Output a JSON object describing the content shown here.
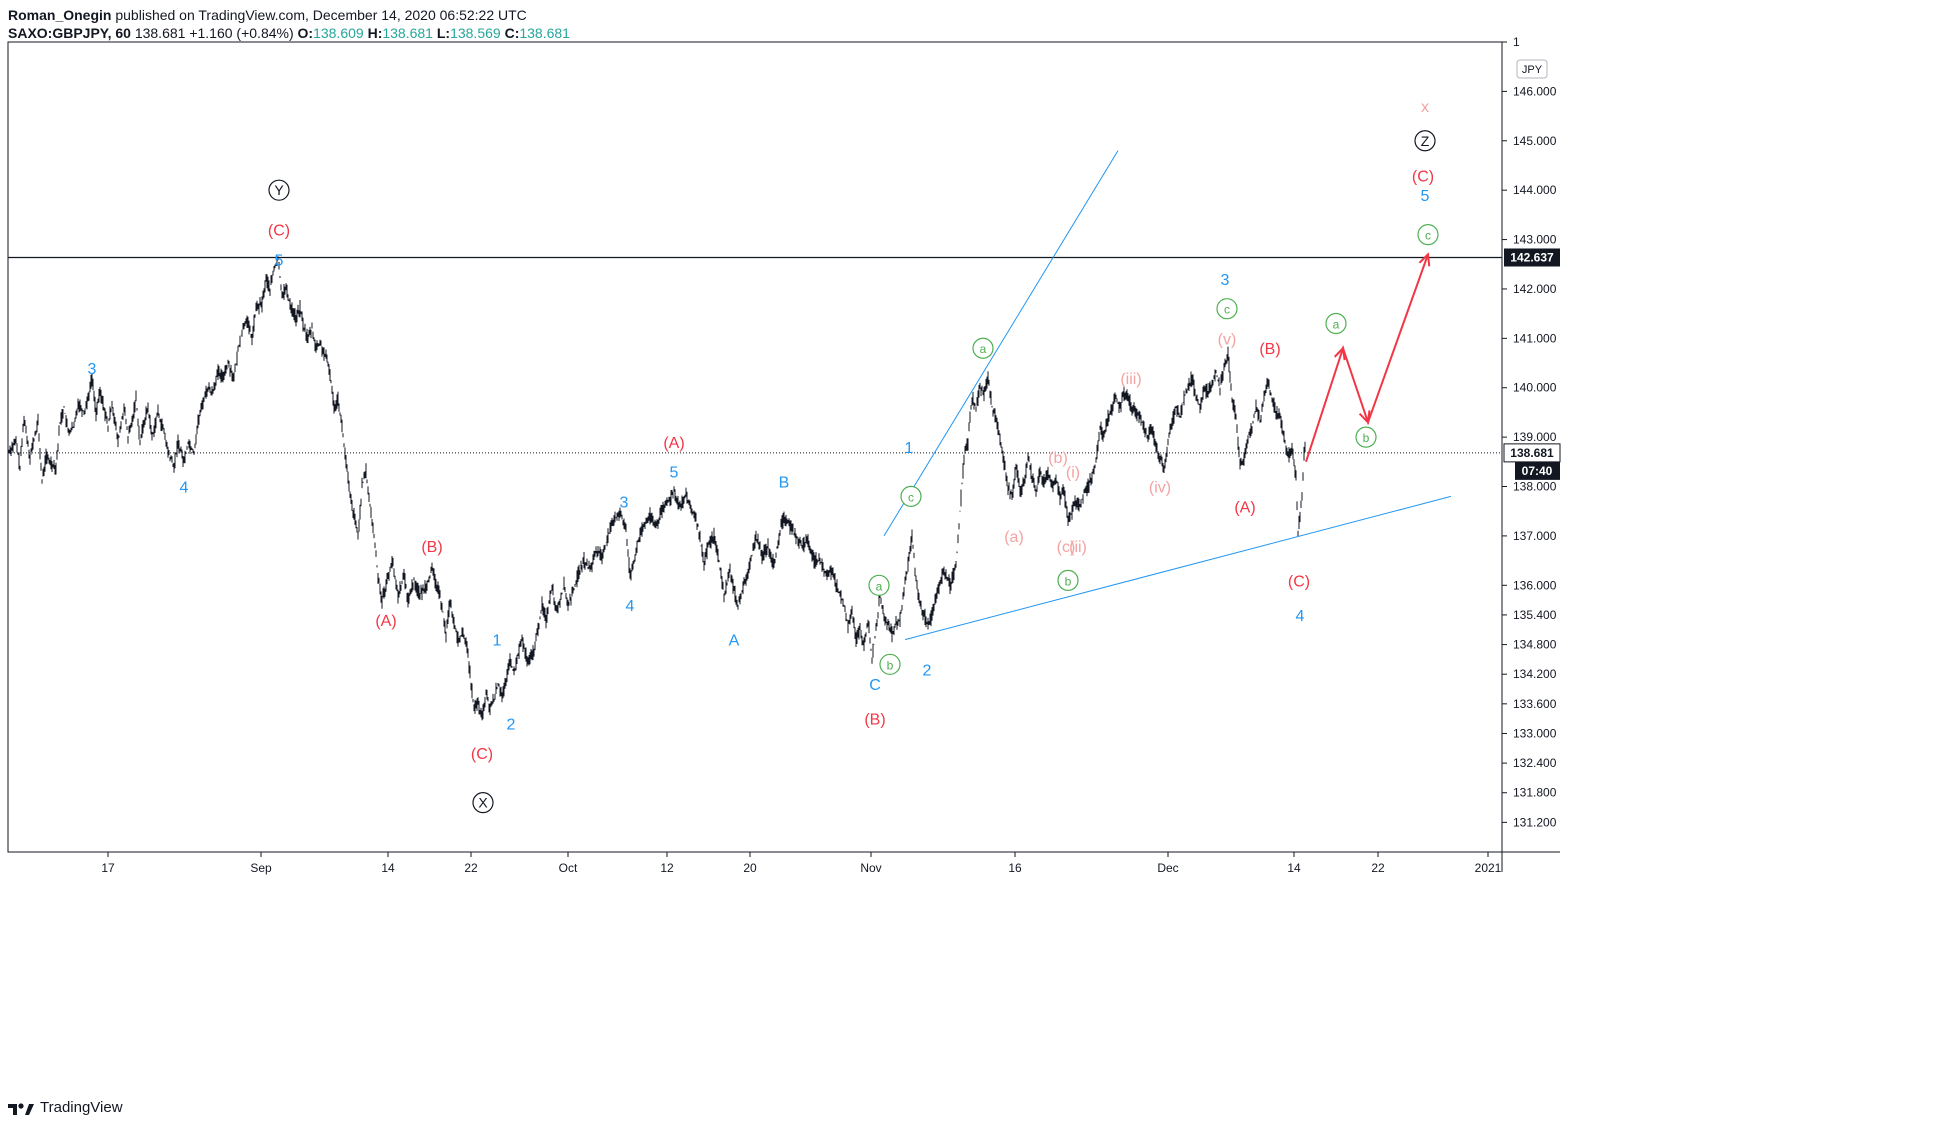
{
  "header": {
    "author": "Roman_Onegin",
    "published_text": "published on TradingView.com, December 14, 2020 06:52:22 UTC",
    "symbol": "SAXO:GBPJPY, 60",
    "last": "138.681",
    "change": "+1.160 (+0.84%)",
    "o_label": "O:",
    "o_value": "138.609",
    "h_label": "H:",
    "h_value": "138.681",
    "l_label": "L:",
    "l_value": "138.569",
    "c_label": "C:",
    "c_value": "138.681"
  },
  "footer": {
    "brand": "TradingView"
  },
  "colors": {
    "red": "#f23645",
    "blue": "#2196f3",
    "green": "#4caf50",
    "pink": "#f4a3a3",
    "black": "#131722"
  },
  "chart_data": {
    "type": "line",
    "currency_badge": "JPY",
    "ylim": [
      130.6,
      147.0
    ],
    "y_ticks": [
      "131.200",
      "131.800",
      "132.400",
      "133.000",
      "133.600",
      "134.200",
      "134.800",
      "135.400",
      "136.000",
      "137.000",
      "138.000",
      "139.000",
      "140.000",
      "141.000",
      "142.000",
      "143.000",
      "144.000",
      "145.000",
      "146.000",
      "1"
    ],
    "x_ticks": [
      "17",
      "Sep",
      "14",
      "22",
      "Oct",
      "12",
      "20",
      "Nov",
      "16",
      "Dec",
      "14",
      "22",
      "2021"
    ],
    "price_labels": {
      "last": "138.681",
      "countdown": "07:40",
      "hline": "142.637"
    },
    "hline_value": 142.637,
    "price_path": [
      [
        0,
        138.7
      ],
      [
        8,
        138.9
      ],
      [
        12,
        138.4
      ],
      [
        16,
        139.4
      ],
      [
        22,
        138.6
      ],
      [
        30,
        139.3
      ],
      [
        34,
        138.1
      ],
      [
        38,
        138.6
      ],
      [
        42,
        138.5
      ],
      [
        48,
        138.4
      ],
      [
        52,
        139.3
      ],
      [
        56,
        139.6
      ],
      [
        60,
        139.1
      ],
      [
        66,
        139.2
      ],
      [
        70,
        139.7
      ],
      [
        76,
        139.5
      ],
      [
        80,
        139.8
      ],
      [
        84,
        140.2
      ],
      [
        88,
        139.5
      ],
      [
        92,
        139.9
      ],
      [
        96,
        139.6
      ],
      [
        100,
        139.2
      ],
      [
        104,
        139.7
      ],
      [
        110,
        138.9
      ],
      [
        116,
        139.6
      ],
      [
        120,
        139.0
      ],
      [
        124,
        139.3
      ],
      [
        128,
        139.8
      ],
      [
        132,
        138.9
      ],
      [
        136,
        139.3
      ],
      [
        140,
        139.6
      ],
      [
        144,
        139.0
      ],
      [
        150,
        139.5
      ],
      [
        156,
        139.1
      ],
      [
        160,
        138.7
      ],
      [
        166,
        138.4
      ],
      [
        170,
        138.9
      ],
      [
        176,
        138.5
      ],
      [
        180,
        138.9
      ],
      [
        186,
        138.7
      ],
      [
        190,
        139.3
      ],
      [
        196,
        139.8
      ],
      [
        200,
        140.0
      ],
      [
        204,
        139.9
      ],
      [
        210,
        140.3
      ],
      [
        214,
        140.2
      ],
      [
        220,
        140.5
      ],
      [
        226,
        140.2
      ],
      [
        232,
        141.0
      ],
      [
        238,
        141.4
      ],
      [
        244,
        141.0
      ],
      [
        248,
        141.6
      ],
      [
        254,
        141.7
      ],
      [
        258,
        142.2
      ],
      [
        262,
        142.0
      ],
      [
        266,
        142.4
      ],
      [
        270,
        142.6
      ],
      [
        274,
        141.9
      ],
      [
        278,
        142.0
      ],
      [
        282,
        141.7
      ],
      [
        288,
        141.4
      ],
      [
        292,
        141.6
      ],
      [
        296,
        141.2
      ],
      [
        300,
        141.0
      ],
      [
        304,
        141.2
      ],
      [
        308,
        140.8
      ],
      [
        312,
        140.9
      ],
      [
        318,
        140.6
      ],
      [
        322,
        140.3
      ],
      [
        326,
        139.6
      ],
      [
        330,
        139.8
      ],
      [
        334,
        139.2
      ],
      [
        338,
        138.5
      ],
      [
        342,
        137.8
      ],
      [
        346,
        137.4
      ],
      [
        350,
        137.0
      ],
      [
        354,
        138.0
      ],
      [
        358,
        138.3
      ],
      [
        362,
        137.6
      ],
      [
        366,
        137.0
      ],
      [
        370,
        136.2
      ],
      [
        374,
        135.7
      ],
      [
        378,
        136.0
      ],
      [
        384,
        136.5
      ],
      [
        390,
        135.8
      ],
      [
        396,
        136.2
      ],
      [
        400,
        135.7
      ],
      [
        406,
        136.1
      ],
      [
        412,
        135.8
      ],
      [
        418,
        136.0
      ],
      [
        424,
        136.3
      ],
      [
        430,
        135.9
      ],
      [
        434,
        135.6
      ],
      [
        438,
        135.0
      ],
      [
        442,
        135.7
      ],
      [
        446,
        135.2
      ],
      [
        450,
        134.9
      ],
      [
        454,
        135.0
      ],
      [
        458,
        134.9
      ],
      [
        462,
        134.2
      ],
      [
        466,
        133.5
      ],
      [
        470,
        133.6
      ],
      [
        474,
        133.3
      ],
      [
        478,
        133.8
      ],
      [
        482,
        133.5
      ],
      [
        486,
        133.7
      ],
      [
        490,
        134.0
      ],
      [
        494,
        133.8
      ],
      [
        498,
        134.0
      ],
      [
        502,
        134.5
      ],
      [
        506,
        134.2
      ],
      [
        510,
        134.6
      ],
      [
        514,
        134.9
      ],
      [
        520,
        134.4
      ],
      [
        526,
        134.7
      ],
      [
        530,
        135.1
      ],
      [
        534,
        135.6
      ],
      [
        538,
        135.3
      ],
      [
        544,
        136.0
      ],
      [
        548,
        135.5
      ],
      [
        552,
        135.7
      ],
      [
        556,
        136.0
      ],
      [
        560,
        135.6
      ],
      [
        564,
        135.8
      ],
      [
        570,
        136.2
      ],
      [
        576,
        136.5
      ],
      [
        582,
        136.3
      ],
      [
        588,
        136.7
      ],
      [
        594,
        136.6
      ],
      [
        600,
        137.0
      ],
      [
        606,
        137.3
      ],
      [
        612,
        137.5
      ],
      [
        618,
        137.1
      ],
      [
        622,
        136.2
      ],
      [
        626,
        136.5
      ],
      [
        630,
        136.9
      ],
      [
        636,
        137.2
      ],
      [
        642,
        137.4
      ],
      [
        648,
        137.2
      ],
      [
        654,
        137.5
      ],
      [
        660,
        137.7
      ],
      [
        666,
        137.9
      ],
      [
        672,
        137.6
      ],
      [
        678,
        137.8
      ],
      [
        684,
        137.5
      ],
      [
        690,
        137.2
      ],
      [
        696,
        136.4
      ],
      [
        700,
        136.8
      ],
      [
        706,
        137.0
      ],
      [
        710,
        136.6
      ],
      [
        716,
        135.8
      ],
      [
        722,
        136.3
      ],
      [
        726,
        135.9
      ],
      [
        730,
        135.6
      ],
      [
        736,
        136.0
      ],
      [
        742,
        136.4
      ],
      [
        748,
        137.0
      ],
      [
        754,
        136.6
      ],
      [
        760,
        136.8
      ],
      [
        766,
        136.4
      ],
      [
        772,
        137.1
      ],
      [
        776,
        137.4
      ],
      [
        782,
        137.2
      ],
      [
        788,
        137.0
      ],
      [
        794,
        136.8
      ],
      [
        800,
        136.9
      ],
      [
        806,
        136.5
      ],
      [
        812,
        136.5
      ],
      [
        818,
        136.2
      ],
      [
        824,
        136.3
      ],
      [
        830,
        135.9
      ],
      [
        836,
        135.6
      ],
      [
        840,
        135.2
      ],
      [
        844,
        135.5
      ],
      [
        848,
        134.9
      ],
      [
        852,
        135.1
      ],
      [
        856,
        134.8
      ],
      [
        860,
        135.3
      ],
      [
        864,
        134.5
      ],
      [
        868,
        135.1
      ],
      [
        872,
        135.8
      ],
      [
        876,
        135.4
      ],
      [
        880,
        135.2
      ],
      [
        884,
        135.0
      ],
      [
        888,
        135.2
      ],
      [
        892,
        135.3
      ],
      [
        896,
        135.9
      ],
      [
        900,
        136.4
      ],
      [
        904,
        137.0
      ],
      [
        908,
        136.1
      ],
      [
        912,
        135.6
      ],
      [
        916,
        135.4
      ],
      [
        920,
        135.2
      ],
      [
        924,
        135.4
      ],
      [
        930,
        135.9
      ],
      [
        936,
        136.3
      ],
      [
        942,
        136.0
      ],
      [
        948,
        136.4
      ],
      [
        952,
        137.5
      ],
      [
        956,
        138.6
      ],
      [
        960,
        138.9
      ],
      [
        964,
        139.8
      ],
      [
        968,
        139.6
      ],
      [
        972,
        140.0
      ],
      [
        976,
        139.9
      ],
      [
        980,
        140.2
      ],
      [
        984,
        139.6
      ],
      [
        988,
        139.4
      ],
      [
        992,
        139.0
      ],
      [
        996,
        138.5
      ],
      [
        1000,
        138.0
      ],
      [
        1004,
        137.8
      ],
      [
        1008,
        138.4
      ],
      [
        1012,
        137.9
      ],
      [
        1016,
        138.1
      ],
      [
        1020,
        138.6
      ],
      [
        1024,
        138.2
      ],
      [
        1028,
        137.9
      ],
      [
        1032,
        138.3
      ],
      [
        1036,
        138.1
      ],
      [
        1040,
        138.3
      ],
      [
        1044,
        138.0
      ],
      [
        1048,
        138.2
      ],
      [
        1052,
        137.8
      ],
      [
        1056,
        137.9
      ],
      [
        1060,
        137.3
      ],
      [
        1064,
        137.5
      ],
      [
        1068,
        137.7
      ],
      [
        1072,
        137.6
      ],
      [
        1076,
        137.9
      ],
      [
        1080,
        138.0
      ],
      [
        1084,
        138.2
      ],
      [
        1088,
        138.5
      ],
      [
        1092,
        139.2
      ],
      [
        1096,
        139.0
      ],
      [
        1100,
        139.4
      ],
      [
        1104,
        139.6
      ],
      [
        1108,
        139.8
      ],
      [
        1112,
        139.6
      ],
      [
        1116,
        139.9
      ],
      [
        1120,
        139.8
      ],
      [
        1124,
        139.6
      ],
      [
        1128,
        139.5
      ],
      [
        1132,
        139.4
      ],
      [
        1136,
        139.2
      ],
      [
        1140,
        139.0
      ],
      [
        1144,
        139.2
      ],
      [
        1148,
        138.8
      ],
      [
        1152,
        138.6
      ],
      [
        1156,
        138.4
      ],
      [
        1160,
        138.9
      ],
      [
        1164,
        139.3
      ],
      [
        1168,
        139.6
      ],
      [
        1172,
        139.4
      ],
      [
        1176,
        139.8
      ],
      [
        1180,
        140.0
      ],
      [
        1184,
        140.2
      ],
      [
        1188,
        139.8
      ],
      [
        1192,
        139.6
      ],
      [
        1196,
        140.0
      ],
      [
        1200,
        139.9
      ],
      [
        1204,
        140.1
      ],
      [
        1208,
        140.3
      ],
      [
        1212,
        140.0
      ],
      [
        1216,
        140.4
      ],
      [
        1220,
        140.7
      ],
      [
        1224,
        139.8
      ],
      [
        1228,
        139.4
      ],
      [
        1232,
        138.4
      ],
      [
        1236,
        138.6
      ],
      [
        1240,
        139.0
      ],
      [
        1244,
        139.2
      ],
      [
        1248,
        139.6
      ],
      [
        1252,
        139.3
      ],
      [
        1256,
        139.8
      ],
      [
        1260,
        140.1
      ],
      [
        1264,
        139.8
      ],
      [
        1268,
        139.5
      ],
      [
        1272,
        139.4
      ],
      [
        1276,
        139.0
      ],
      [
        1280,
        138.6
      ],
      [
        1284,
        138.8
      ],
      [
        1288,
        138.2
      ],
      [
        1290,
        137.1
      ],
      [
        1292,
        137.4
      ],
      [
        1294,
        137.8
      ],
      [
        1296,
        138.7
      ],
      [
        1298,
        138.8
      ]
    ],
    "fine_noise_amplitude": 0.18,
    "projection": [
      [
        1298,
        138.5
      ],
      [
        1335,
        140.8
      ],
      [
        1360,
        139.3
      ],
      [
        1420,
        142.7
      ]
    ],
    "trendlines": [
      {
        "from": [
          876,
          137.0
        ],
        "to": [
          1110,
          144.8
        ]
      },
      {
        "from": [
          897,
          134.9
        ],
        "to": [
          1443,
          137.8
        ]
      }
    ],
    "wave_labels": [
      {
        "text": "Y",
        "x": 271,
        "y": 144.0,
        "color": "black",
        "circle": true
      },
      {
        "text": "(C)",
        "x": 271,
        "y": 143.2,
        "color": "red"
      },
      {
        "text": "5",
        "x": 271,
        "y": 142.6,
        "color": "blue"
      },
      {
        "text": "3",
        "x": 84,
        "y": 140.4,
        "color": "blue"
      },
      {
        "text": "4",
        "x": 176,
        "y": 138.0,
        "color": "blue"
      },
      {
        "text": "(B)",
        "x": 424,
        "y": 136.8,
        "color": "red"
      },
      {
        "text": "(A)",
        "x": 378,
        "y": 135.3,
        "color": "red"
      },
      {
        "text": "1",
        "x": 489,
        "y": 134.9,
        "color": "blue"
      },
      {
        "text": "2",
        "x": 503,
        "y": 133.2,
        "color": "blue"
      },
      {
        "text": "(C)",
        "x": 474,
        "y": 132.6,
        "color": "red"
      },
      {
        "text": "X",
        "x": 475,
        "y": 131.6,
        "color": "black",
        "circle": true
      },
      {
        "text": "3",
        "x": 616,
        "y": 137.7,
        "color": "blue"
      },
      {
        "text": "4",
        "x": 622,
        "y": 135.6,
        "color": "blue"
      },
      {
        "text": "(A)",
        "x": 666,
        "y": 138.9,
        "color": "red"
      },
      {
        "text": "5",
        "x": 666,
        "y": 138.3,
        "color": "blue"
      },
      {
        "text": "A",
        "x": 726,
        "y": 134.9,
        "color": "blue"
      },
      {
        "text": "B",
        "x": 776,
        "y": 138.1,
        "color": "blue"
      },
      {
        "text": "C",
        "x": 867,
        "y": 134.0,
        "color": "blue"
      },
      {
        "text": "(B)",
        "x": 867,
        "y": 133.3,
        "color": "red"
      },
      {
        "text": "a",
        "x": 871,
        "y": 136.0,
        "color": "green",
        "circle": true
      },
      {
        "text": "b",
        "x": 882,
        "y": 134.4,
        "color": "green",
        "circle": true
      },
      {
        "text": "c",
        "x": 903,
        "y": 137.8,
        "color": "green",
        "circle": true
      },
      {
        "text": "1",
        "x": 901,
        "y": 138.8,
        "color": "blue"
      },
      {
        "text": "2",
        "x": 919,
        "y": 134.3,
        "color": "blue"
      },
      {
        "text": "a",
        "x": 975,
        "y": 140.8,
        "color": "green",
        "circle": true
      },
      {
        "text": "(a)",
        "x": 1006,
        "y": 137.0,
        "color": "pink"
      },
      {
        "text": "(b)",
        "x": 1050,
        "y": 138.6,
        "color": "pink"
      },
      {
        "text": "(i)",
        "x": 1065,
        "y": 138.3,
        "color": "pink"
      },
      {
        "text": "(c)",
        "x": 1058,
        "y": 136.8,
        "color": "pink"
      },
      {
        "text": "(ii)",
        "x": 1070,
        "y": 136.8,
        "color": "pink"
      },
      {
        "text": "b",
        "x": 1060,
        "y": 136.1,
        "color": "green",
        "circle": true
      },
      {
        "text": "(iii)",
        "x": 1123,
        "y": 140.2,
        "color": "pink"
      },
      {
        "text": "(iv)",
        "x": 1152,
        "y": 138.0,
        "color": "pink"
      },
      {
        "text": "3",
        "x": 1217,
        "y": 142.2,
        "color": "blue"
      },
      {
        "text": "c",
        "x": 1219,
        "y": 141.6,
        "color": "green",
        "circle": true
      },
      {
        "text": "(v)",
        "x": 1219,
        "y": 141.0,
        "color": "pink"
      },
      {
        "text": "(B)",
        "x": 1262,
        "y": 140.8,
        "color": "red"
      },
      {
        "text": "(A)",
        "x": 1237,
        "y": 137.6,
        "color": "red"
      },
      {
        "text": "(C)",
        "x": 1291,
        "y": 136.1,
        "color": "red"
      },
      {
        "text": "4",
        "x": 1292,
        "y": 135.4,
        "color": "blue"
      },
      {
        "text": "a",
        "x": 1328,
        "y": 141.3,
        "color": "green",
        "circle": true
      },
      {
        "text": "b",
        "x": 1358,
        "y": 139.0,
        "color": "green",
        "circle": true
      },
      {
        "text": "c",
        "x": 1420,
        "y": 143.1,
        "color": "green",
        "circle": true
      },
      {
        "text": "5",
        "x": 1417,
        "y": 143.9,
        "color": "blue"
      },
      {
        "text": "(C)",
        "x": 1415,
        "y": 144.3,
        "color": "red"
      },
      {
        "text": "Z",
        "x": 1417,
        "y": 145.0,
        "color": "black",
        "circle": true
      },
      {
        "text": "x",
        "x": 1417,
        "y": 145.7,
        "color": "pink"
      }
    ]
  }
}
